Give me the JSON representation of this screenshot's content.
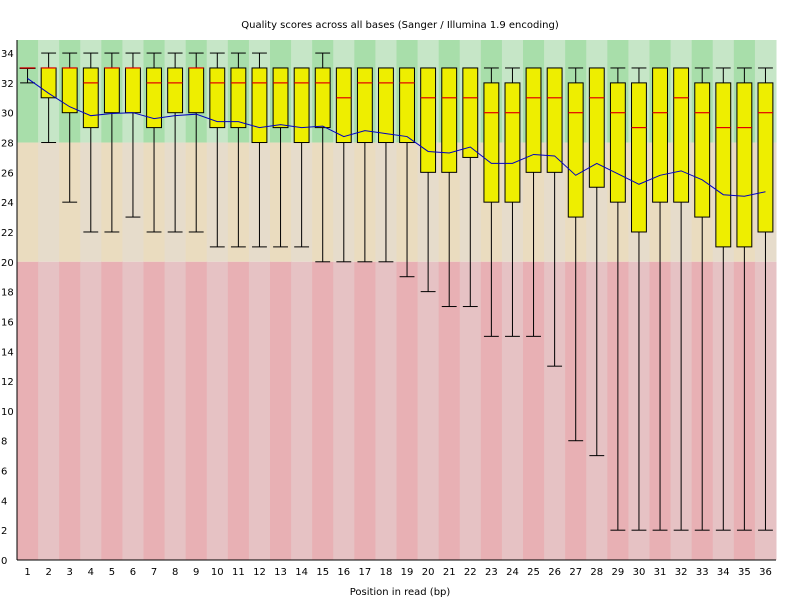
{
  "chart_data": {
    "type": "box",
    "title": "Quality scores across all bases (Sanger / Illumina 1.9 encoding)",
    "xlabel": "Position in read (bp)",
    "ylabel": "",
    "ylim": [
      0,
      34
    ],
    "yticks": [
      0,
      2,
      4,
      6,
      8,
      10,
      12,
      14,
      16,
      18,
      20,
      22,
      24,
      26,
      28,
      30,
      32,
      34
    ],
    "categories": [
      "1",
      "2",
      "3",
      "4",
      "5",
      "6",
      "7",
      "8",
      "9",
      "10",
      "11",
      "12",
      "13",
      "14",
      "15",
      "16",
      "17",
      "18",
      "19",
      "20",
      "21",
      "22",
      "23",
      "24",
      "25",
      "26",
      "27",
      "28",
      "29",
      "30",
      "31",
      "32",
      "33",
      "34",
      "35",
      "36"
    ],
    "median": [
      33,
      33,
      33,
      32,
      33,
      33,
      32,
      32,
      33,
      32,
      32,
      32,
      32,
      32,
      32,
      31,
      32,
      32,
      32,
      31,
      31,
      31,
      30,
      30,
      31,
      31,
      30,
      31,
      30,
      29,
      30,
      31,
      30,
      29,
      29,
      30
    ],
    "q1": [
      33,
      31,
      30,
      29,
      30,
      30,
      29,
      30,
      30,
      29,
      29,
      28,
      29,
      28,
      29,
      28,
      28,
      28,
      28,
      26,
      26,
      27,
      24,
      24,
      26,
      26,
      23,
      25,
      24,
      22,
      24,
      24,
      23,
      21,
      21,
      22
    ],
    "q3": [
      33,
      33,
      33,
      33,
      33,
      33,
      33,
      33,
      33,
      33,
      33,
      33,
      33,
      33,
      33,
      33,
      33,
      33,
      33,
      33,
      33,
      33,
      32,
      32,
      33,
      33,
      32,
      33,
      32,
      32,
      33,
      33,
      32,
      32,
      32,
      32
    ],
    "lower_whisker": [
      32,
      28,
      24,
      22,
      22,
      23,
      22,
      22,
      22,
      21,
      21,
      21,
      21,
      21,
      20,
      20,
      20,
      20,
      19,
      18,
      17,
      17,
      15,
      15,
      15,
      13,
      8,
      7,
      2,
      2,
      2,
      2,
      2,
      2,
      2,
      2
    ],
    "upper_whisker": [
      33,
      34,
      34,
      34,
      34,
      34,
      34,
      34,
      34,
      34,
      34,
      34,
      33,
      33,
      34,
      33,
      33,
      33,
      33,
      33,
      33,
      33,
      33,
      33,
      33,
      33,
      33,
      33,
      33,
      33,
      33,
      33,
      33,
      33,
      33,
      33
    ],
    "mean": [
      32.3,
      31.3,
      30.4,
      29.8,
      29.95,
      30.0,
      29.6,
      29.8,
      29.9,
      29.4,
      29.4,
      29.0,
      29.2,
      29.0,
      29.1,
      28.4,
      28.8,
      28.6,
      28.4,
      27.4,
      27.3,
      27.7,
      26.6,
      26.6,
      27.2,
      27.1,
      25.8,
      26.6,
      25.9,
      25.2,
      25.8,
      26.1,
      25.5,
      24.5,
      24.4,
      24.7
    ],
    "zones": [
      {
        "from": 28,
        "to": 35,
        "colors": [
          "#a8deaa",
          "#c6e6c7"
        ]
      },
      {
        "from": 20,
        "to": 28,
        "colors": [
          "#eadcbf",
          "#e6dccb"
        ]
      },
      {
        "from": 0,
        "to": 20,
        "colors": [
          "#e8b0b4",
          "#e6c2c4"
        ]
      }
    ],
    "colors": {
      "box": "#eeee00",
      "median": "#e00000",
      "mean": "#0000c0",
      "whisker": "#000000"
    }
  }
}
